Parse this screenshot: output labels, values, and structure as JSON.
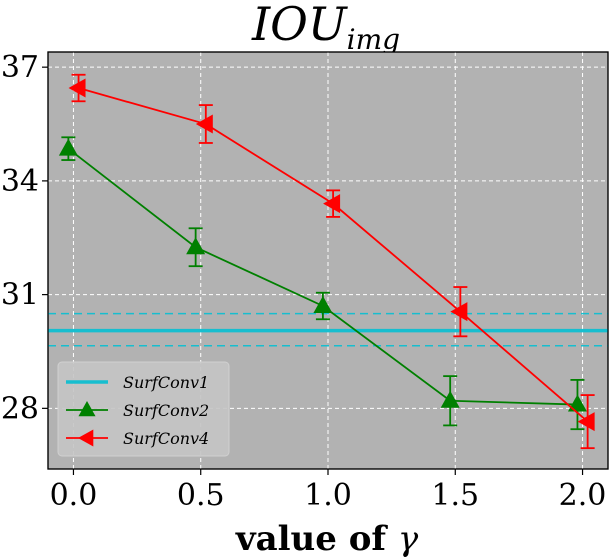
{
  "chart_data": {
    "type": "line",
    "title": "IOU",
    "title_subscript": "img",
    "xlabel": "value of ",
    "xlabel_symbol": "γ",
    "ylabel": "",
    "xlim": [
      -0.1,
      2.1
    ],
    "ylim": [
      26.4,
      37.4
    ],
    "xticks": [
      0.0,
      0.5,
      1.0,
      1.5,
      2.0
    ],
    "xtick_labels": [
      "0.0",
      "0.5",
      "1.0",
      "1.5",
      "2.0"
    ],
    "yticks": [
      28,
      31,
      34,
      37
    ],
    "ytick_labels": [
      "28",
      "31",
      "34",
      "37"
    ],
    "grid": true,
    "legend_position": "bottom-left",
    "baseline": {
      "name": "SurfConv1",
      "value": 30.05,
      "band": [
        29.65,
        30.5
      ],
      "color": "#17becf"
    },
    "series": [
      {
        "name": "SurfConv2",
        "color": "#008000",
        "marker": "triangle-up",
        "x": [
          -0.02,
          0.48,
          0.98,
          1.48,
          1.98
        ],
        "values": [
          34.85,
          32.25,
          30.7,
          28.2,
          28.1
        ],
        "errors": [
          0.3,
          0.5,
          0.35,
          0.65,
          0.65
        ]
      },
      {
        "name": "SurfConv4",
        "color": "#ff0000",
        "marker": "triangle-left",
        "x": [
          0.02,
          0.52,
          1.02,
          1.52,
          2.02
        ],
        "values": [
          36.45,
          35.5,
          33.4,
          30.55,
          27.65
        ],
        "errors": [
          0.35,
          0.5,
          0.35,
          0.65,
          0.7
        ]
      }
    ]
  }
}
